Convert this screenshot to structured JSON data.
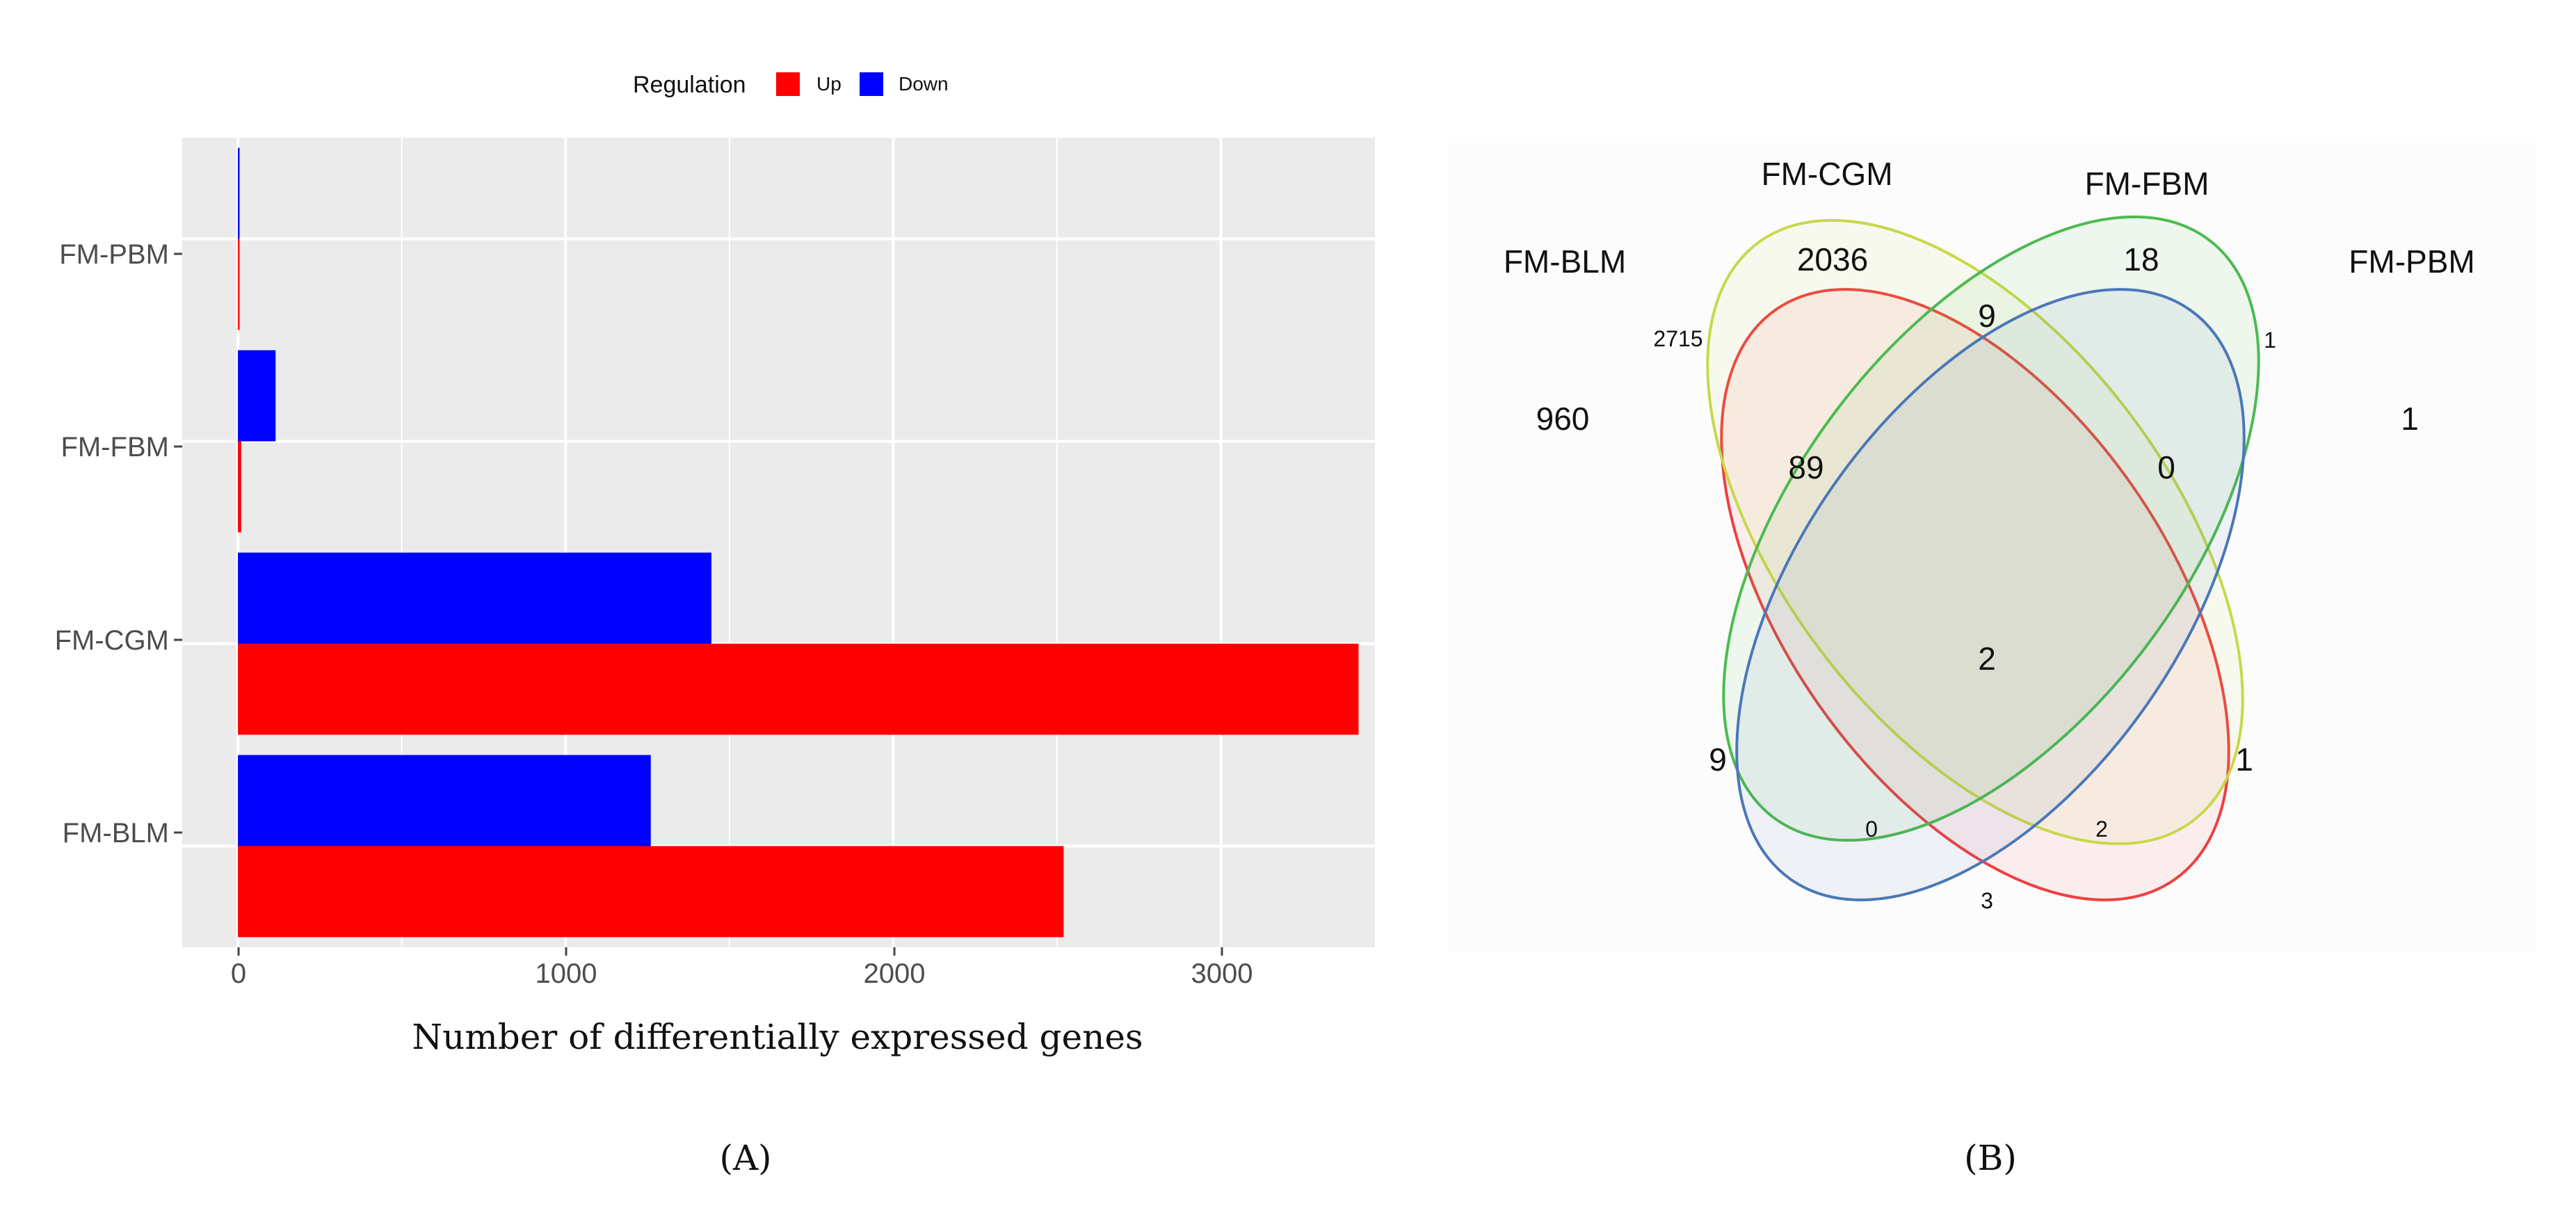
{
  "chart_data": [
    {
      "type": "bar",
      "orientation": "horizontal",
      "panel_label": "(A)",
      "categories": [
        "FM-PBM",
        "FM-FBM",
        "FM-CGM",
        "FM-BLM"
      ],
      "series": [
        {
          "name": "Down",
          "color": "#0000ff",
          "values": [
            5,
            115,
            1445,
            1260
          ]
        },
        {
          "name": "Up",
          "color": "#ff0000",
          "values": [
            5,
            10,
            3420,
            2520
          ]
        }
      ],
      "xlabel": "Number of differentially expressed genes",
      "ylabel": "",
      "xlim": [
        -170,
        3470
      ],
      "xticks": [
        0,
        1000,
        2000,
        3000
      ],
      "tick_labels": [
        "0",
        "1000",
        "2000",
        "3000"
      ],
      "grid": true,
      "legend": {
        "title": "Regulation",
        "placement": "top-center",
        "items": [
          "Up",
          "Down"
        ]
      }
    },
    {
      "type": "venn",
      "panel_label": "(B)",
      "sets": [
        {
          "name": "FM-BLM",
          "color": "#ee4040"
        },
        {
          "name": "FM-CGM",
          "color": "#c8d84a"
        },
        {
          "name": "FM-FBM",
          "color": "#4cbb50"
        },
        {
          "name": "FM-PBM",
          "color": "#4a78b8"
        }
      ],
      "regions": [
        {
          "sets": [
            "FM-BLM"
          ],
          "value": 960
        },
        {
          "sets": [
            "FM-CGM"
          ],
          "value": 2036
        },
        {
          "sets": [
            "FM-FBM"
          ],
          "value": 18
        },
        {
          "sets": [
            "FM-PBM"
          ],
          "value": 1
        },
        {
          "sets": [
            "FM-BLM",
            "FM-CGM"
          ],
          "value": 2715
        },
        {
          "sets": [
            "FM-CGM",
            "FM-FBM"
          ],
          "value": 9
        },
        {
          "sets": [
            "FM-FBM",
            "FM-PBM"
          ],
          "value": 1
        },
        {
          "sets": [
            "FM-BLM",
            "FM-CGM",
            "FM-FBM"
          ],
          "value": 89
        },
        {
          "sets": [
            "FM-CGM",
            "FM-FBM",
            "FM-PBM"
          ],
          "value": 0
        },
        {
          "sets": [
            "FM-BLM",
            "FM-CGM",
            "FM-FBM",
            "FM-PBM"
          ],
          "value": 2
        },
        {
          "sets": [
            "FM-BLM",
            "FM-FBM"
          ],
          "value": 9
        },
        {
          "sets": [
            "FM-CGM",
            "FM-PBM"
          ],
          "value": 1
        },
        {
          "sets": [
            "FM-BLM",
            "FM-FBM",
            "FM-PBM"
          ],
          "value": 0
        },
        {
          "sets": [
            "FM-BLM",
            "FM-CGM",
            "FM-PBM"
          ],
          "value": 2
        },
        {
          "sets": [
            "FM-BLM",
            "FM-PBM"
          ],
          "value": 3
        }
      ]
    }
  ]
}
